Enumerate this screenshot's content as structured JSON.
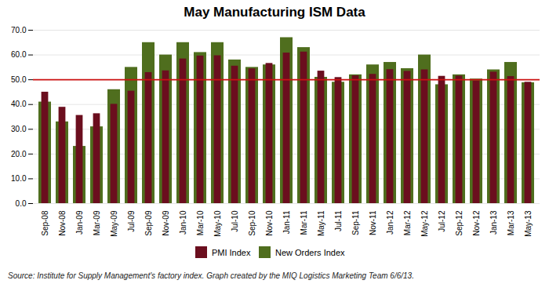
{
  "chart_data": {
    "type": "bar",
    "title": "May Manufacturing ISM Data",
    "annotation": "Source: Institute for Supply Management's factory index. Graph created by the MIQ Logistics Marketing Team 6/6/13.",
    "categories": [
      "Sep-08",
      "Nov-08",
      "Jan-09",
      "Mar-09",
      "May-09",
      "Jul-09",
      "Sep-09",
      "Nov-09",
      "Jan-10",
      "Mar-10",
      "May-10",
      "Jul-10",
      "Sep-10",
      "Nov-10",
      "Jan-11",
      "Mar-11",
      "May-11",
      "Jul-11",
      "Sep-11",
      "Nov-11",
      "Jan-12",
      "Mar-12",
      "May-12",
      "Jul-12",
      "Sep-12",
      "Nov-12",
      "Jan-13",
      "Mar-13",
      "May-13"
    ],
    "series": [
      {
        "name": "PMI Index",
        "color": "#6b0e1e",
        "values": [
          45.0,
          38.9,
          35.6,
          36.3,
          40.1,
          45.4,
          52.9,
          53.6,
          58.4,
          59.6,
          59.7,
          55.5,
          54.4,
          56.6,
          60.8,
          61.2,
          53.5,
          50.9,
          51.6,
          52.2,
          54.1,
          53.4,
          54.0,
          51.4,
          51.5,
          49.5,
          53.1,
          51.3,
          49.0
        ]
      },
      {
        "name": "New Orders Index",
        "color": "#4f6e1e",
        "values": [
          41.0,
          33.0,
          23.1,
          31.0,
          46.0,
          55.0,
          65.0,
          60.0,
          65.0,
          61.0,
          65.0,
          58.0,
          55.0,
          56.0,
          67.0,
          63.0,
          51.0,
          49.0,
          52.0,
          56.0,
          57.0,
          54.5,
          60.0,
          48.0,
          52.0,
          50.3,
          54.0,
          57.0,
          48.8
        ]
      }
    ],
    "reference_line": {
      "value": 50.0,
      "color": "#cc1111"
    },
    "ylim": [
      0.0,
      70.0
    ],
    "yticks": [
      {
        "value": 0,
        "label": "0.0"
      },
      {
        "value": 10,
        "label": "10.0"
      },
      {
        "value": 20,
        "label": "20.0"
      },
      {
        "value": 30,
        "label": "30.0"
      },
      {
        "value": 40,
        "label": "40.0"
      },
      {
        "value": 50,
        "label": "50.0"
      },
      {
        "value": 60,
        "label": "60.0"
      },
      {
        "value": 70,
        "label": "70.0"
      }
    ],
    "grid": true,
    "legend": "bottom"
  }
}
